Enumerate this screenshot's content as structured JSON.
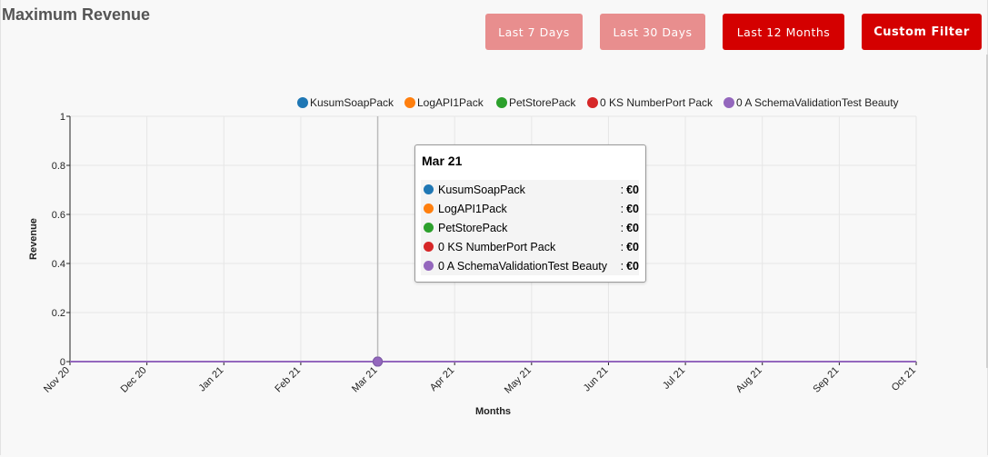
{
  "page": {
    "title": "Maximum Revenue"
  },
  "filters": {
    "last_7_days": "Last 7 Days",
    "last_30_days": "Last 30 Days",
    "last_12_months": "Last 12 Months",
    "custom_filter": "Custom Filter"
  },
  "colors": {
    "accent": "#d40000",
    "accent_inactive": "#e88e8e"
  },
  "chart_data": {
    "type": "line",
    "xlabel": "Months",
    "ylabel": "Revenue",
    "categories": [
      "Nov 20",
      "Dec 20",
      "Jan 21",
      "Feb 21",
      "Mar 21",
      "Apr 21",
      "May 21",
      "Jun 21",
      "Jul 21",
      "Aug 21",
      "Sep 21",
      "Oct 21"
    ],
    "ylim": [
      0,
      1
    ],
    "yticks": [
      "0",
      "0.2",
      "0.4",
      "0.6",
      "0.8",
      "1"
    ],
    "grid": true,
    "legend_position": "top",
    "series": [
      {
        "name": "KusumSoapPack",
        "color": "#1f77b4",
        "values": [
          0,
          0,
          0,
          0,
          0,
          0,
          0,
          0,
          0,
          0,
          0,
          0
        ]
      },
      {
        "name": "LogAPI1Pack",
        "color": "#ff7f0e",
        "values": [
          0,
          0,
          0,
          0,
          0,
          0,
          0,
          0,
          0,
          0,
          0,
          0
        ]
      },
      {
        "name": "PetStorePack",
        "color": "#2ca02c",
        "values": [
          0,
          0,
          0,
          0,
          0,
          0,
          0,
          0,
          0,
          0,
          0,
          0
        ]
      },
      {
        "name": "0 KS NumberPort Pack",
        "color": "#d62728",
        "values": [
          0,
          0,
          0,
          0,
          0,
          0,
          0,
          0,
          0,
          0,
          0,
          0
        ]
      },
      {
        "name": "0 A SchemaValidationTest Beauty",
        "color": "#9467bd",
        "values": [
          0,
          0,
          0,
          0,
          0,
          0,
          0,
          0,
          0,
          0,
          0,
          0
        ]
      }
    ],
    "tooltip": {
      "title": "Mar 21",
      "category_index": 4,
      "separator": ":",
      "rows": [
        {
          "name": "KusumSoapPack",
          "value": "€0"
        },
        {
          "name": "LogAPI1Pack",
          "value": "€0"
        },
        {
          "name": "PetStorePack",
          "value": "€0"
        },
        {
          "name": "0 KS NumberPort Pack",
          "value": "€0"
        },
        {
          "name": "0 A SchemaValidationTest Beauty",
          "value": "€0"
        }
      ]
    }
  }
}
